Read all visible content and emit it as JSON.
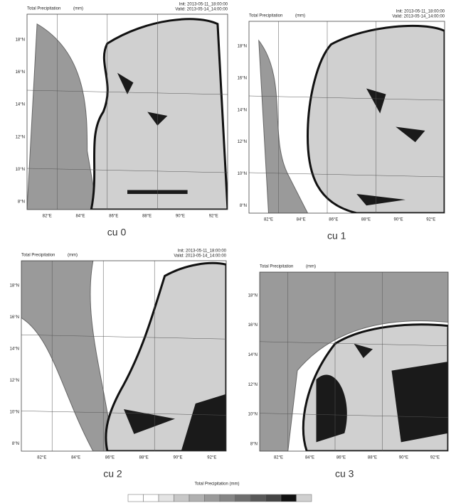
{
  "panels": [
    {
      "title": "Total Precipitation",
      "units": "(mm)",
      "init": "Init: 2013-05-11_18:00:00",
      "valid": "Valid: 2013-05-14_14:00:00",
      "caption": "cu 0"
    },
    {
      "title": "Total Precipitation",
      "units": "(mm)",
      "init": "Init: 2013-05-11_18:00:00",
      "valid": "Valid: 2013-05-14_14:00:00",
      "caption": "cu 1"
    },
    {
      "title": "Total Precipitation",
      "units": "(mm)",
      "init": "Init: 2013-05-11_18:00:00",
      "valid": "Valid: 2013-05-14_14:00:00",
      "caption": "cu 2"
    },
    {
      "title": "Total Precipitation",
      "units": "(mm)",
      "caption": "cu 3"
    }
  ],
  "lat_labels": [
    "18°N",
    "16°N",
    "14°N",
    "12°N",
    "10°N",
    "8°N"
  ],
  "lon_labels": [
    "82°E",
    "84°E",
    "86°E",
    "88°E",
    "90°E",
    "92°E"
  ],
  "colorbar": {
    "label": "Total Precipitation (mm)"
  }
}
